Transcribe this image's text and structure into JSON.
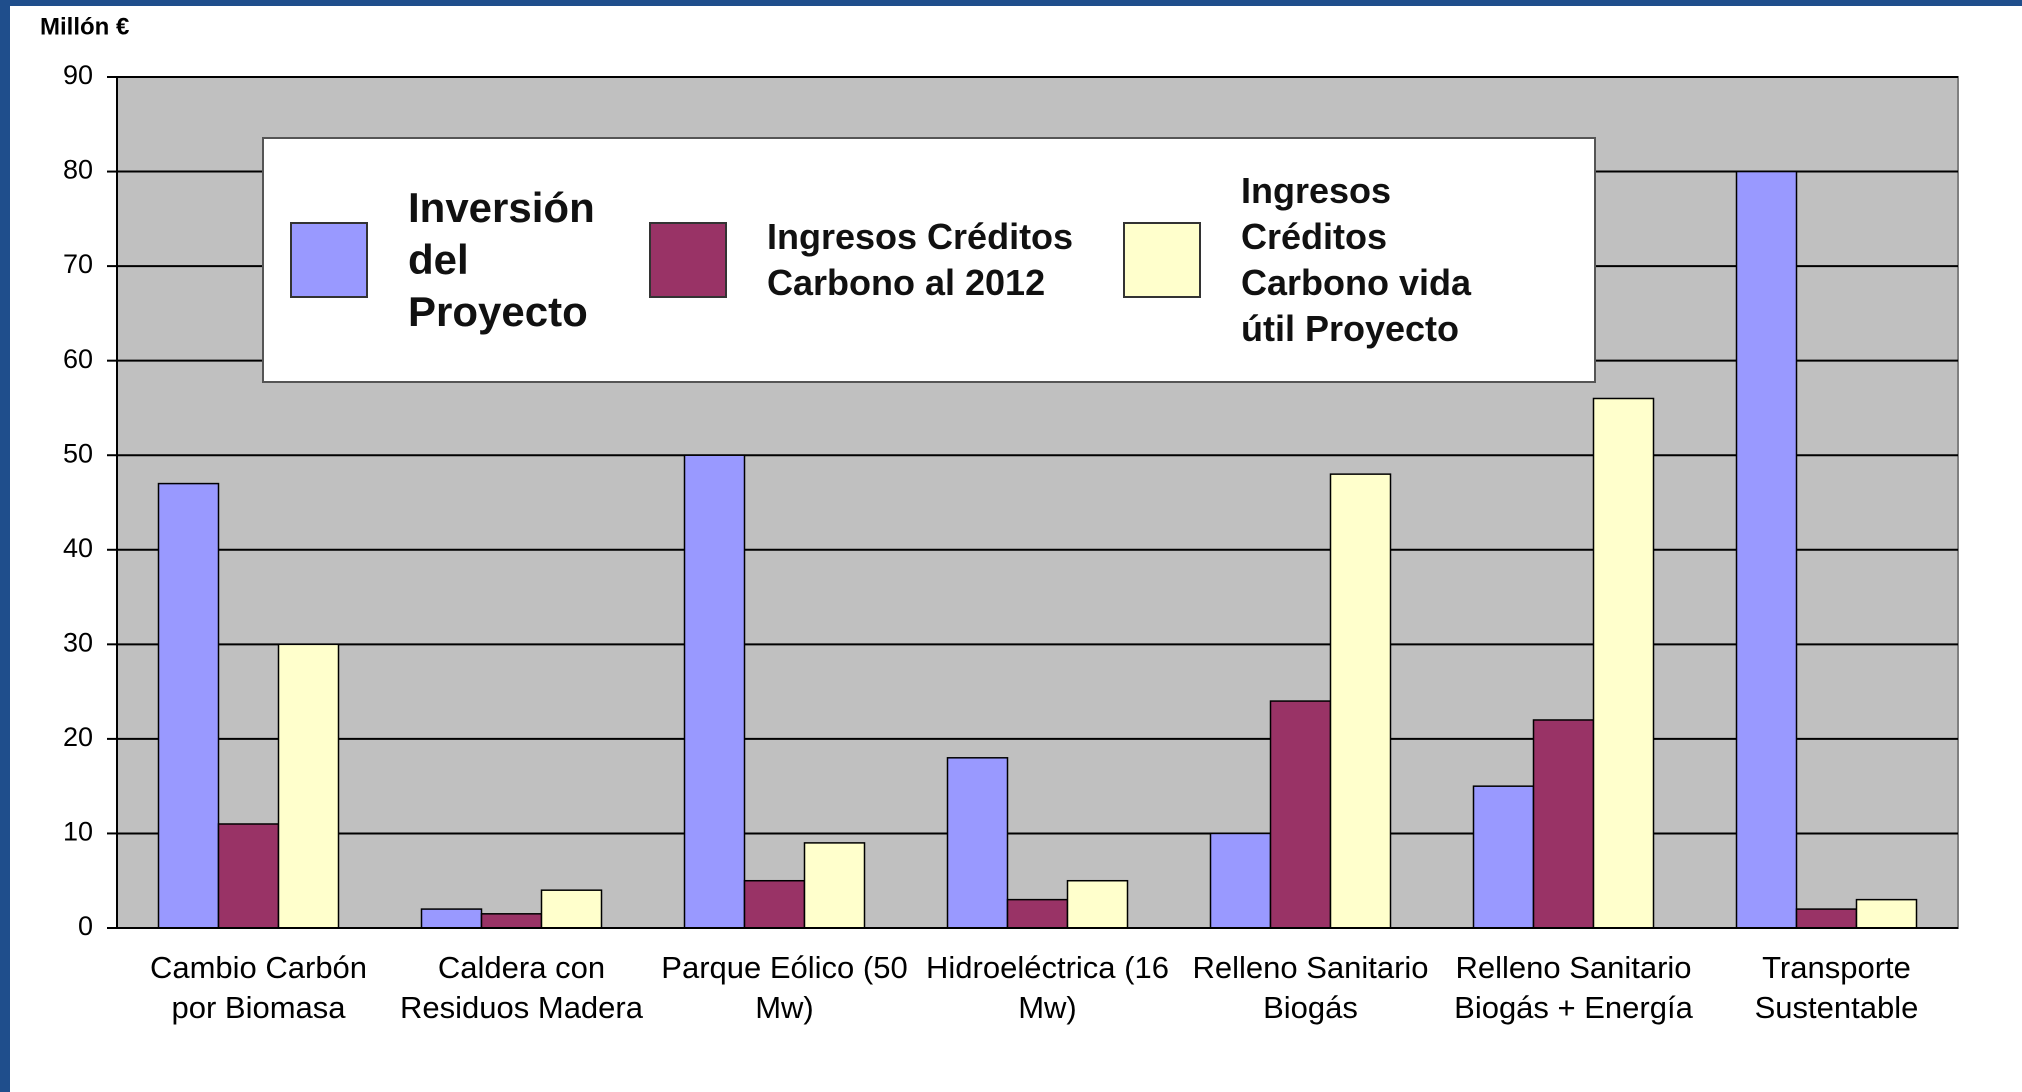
{
  "chart_data": {
    "type": "bar",
    "y_axis_label": "Millón €",
    "categories": [
      "Cambio Carbón por Biomasa",
      "Caldera con Residuos Madera",
      "Parque Eólico (50 Mw)",
      "Hidroeléctrica (16 Mw)",
      "Relleno Sanitario Biogás",
      "Relleno Sanitario Biogás + Energía",
      "Transporte Sustentable"
    ],
    "series": [
      {
        "name": "Inversión del Proyecto",
        "color": "#9999ff",
        "values": [
          47,
          2,
          50,
          18,
          10,
          15,
          80
        ]
      },
      {
        "name": "Ingresos Créditos Carbono al 2012",
        "color": "#993366",
        "values": [
          11,
          1.5,
          5,
          3,
          24,
          22,
          2
        ]
      },
      {
        "name": "Ingresos Créditos Carbono vida útil Proyecto",
        "color": "#ffffcc",
        "values": [
          30,
          4,
          9,
          5,
          48,
          56,
          3
        ]
      }
    ],
    "ylim": [
      0,
      90
    ],
    "yticks": [
      0,
      10,
      20,
      30,
      40,
      50,
      60,
      70,
      80,
      90
    ],
    "grid": true,
    "legend": "top"
  }
}
